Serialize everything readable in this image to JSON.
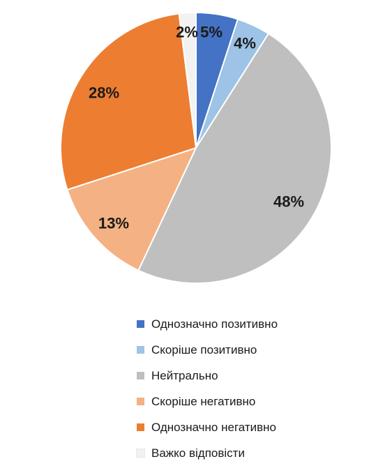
{
  "chart_data": {
    "type": "pie",
    "title": "",
    "start_angle_deg": 0,
    "direction": "clockwise",
    "legend_position": "bottom",
    "slices": [
      {
        "label": "Однозначно позитивно",
        "value": 5,
        "value_label": "5%",
        "color": "#4472C4"
      },
      {
        "label": "Скоріше позитивно",
        "value": 4,
        "value_label": "4%",
        "color": "#9DC3E6"
      },
      {
        "label": "Нейтрально",
        "value": 48,
        "value_label": "48%",
        "color": "#BFBFBF"
      },
      {
        "label": "Скоріше негативно",
        "value": 13,
        "value_label": "13%",
        "color": "#F4B183"
      },
      {
        "label": "Однозначно негативно",
        "value": 28,
        "value_label": "28%",
        "color": "#ED7D31"
      },
      {
        "label": "Важко відповісти",
        "value": 2,
        "value_label": "2%",
        "color": "#F2F2F2"
      }
    ]
  }
}
